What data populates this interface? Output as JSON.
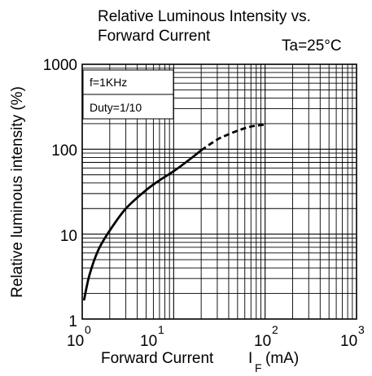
{
  "chart_data": {
    "type": "line",
    "title_line1": "Relative Luminous Intensity vs.",
    "title_line2": "Forward Current",
    "condition": "Ta=25°C",
    "xlabel": "Forward Current",
    "xlabel_symbol": "I",
    "xlabel_subscript": "F",
    "xlabel_unit": "(mA)",
    "ylabel": "Relative luminous intensity (%)",
    "x_scale": "log",
    "y_scale": "log",
    "xlim": [
      1,
      1000
    ],
    "ylim": [
      1,
      1000
    ],
    "grid": true,
    "x_ticks": [
      {
        "base": "10",
        "exp": "0"
      },
      {
        "base": "10",
        "exp": "1"
      },
      {
        "base": "10",
        "exp": "2"
      },
      {
        "base": "10",
        "exp": "3"
      }
    ],
    "y_ticks": [
      "1",
      "10",
      "100",
      "1000"
    ],
    "y_tick_values": [
      1,
      10,
      100,
      1000
    ],
    "annotations": [
      "f=1KHz",
      "Duty=1/10"
    ],
    "series": [
      {
        "line_style": "solid",
        "x": [
          1.05,
          1.2,
          1.5,
          2,
          3,
          5,
          7,
          10,
          15,
          20
        ],
        "y": [
          1.7,
          3.3,
          6.5,
          11,
          20,
          33,
          43,
          55,
          76,
          97
        ]
      },
      {
        "line_style": "dashed",
        "x": [
          20,
          30,
          40,
          50,
          70,
          100
        ],
        "y": [
          97,
          130,
          150,
          165,
          185,
          195
        ]
      }
    ]
  }
}
